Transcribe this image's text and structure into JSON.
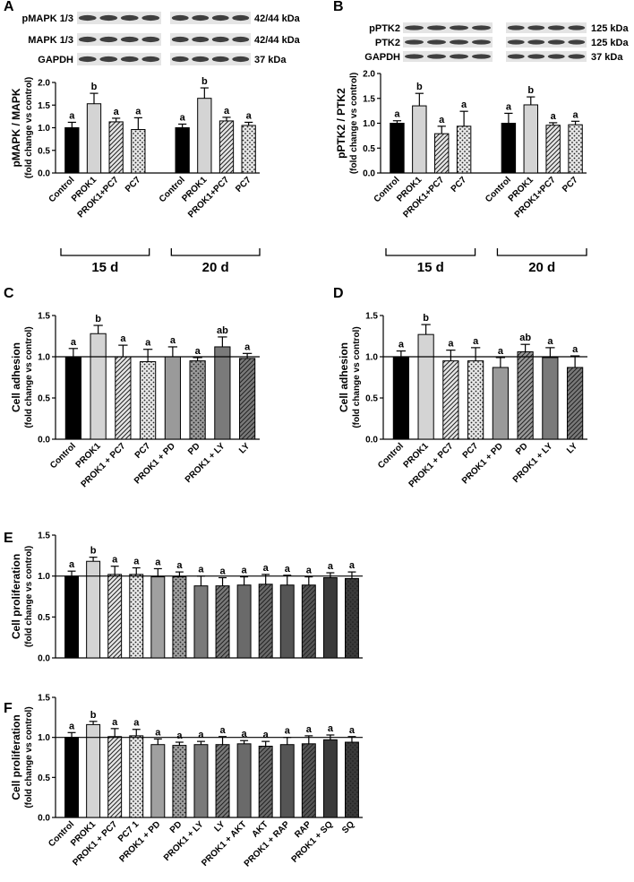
{
  "chart_data": [
    {
      "type": "bar",
      "panel": "A",
      "ylabel": [
        "pMAPK / MAPK",
        "(fold change vs control)"
      ],
      "blot": {
        "labels": [
          "pMAPK 1/3",
          "MAPK 1/3",
          "GAPDH"
        ],
        "sizes": [
          "42/44 kDa",
          "42/44 kDa",
          "37 kDa"
        ]
      },
      "groups": [
        "15 d",
        "20 d"
      ],
      "categories": [
        "Control",
        "PROK1",
        "PROK1+PC7",
        "PC7",
        "Control",
        "PROK1",
        "PROK1+PC7",
        "PC7"
      ],
      "values": [
        1.0,
        1.53,
        1.13,
        0.96,
        1.0,
        1.65,
        1.15,
        1.05
      ],
      "errors": [
        0.12,
        0.23,
        0.08,
        0.26,
        0.08,
        0.23,
        0.08,
        0.07
      ],
      "letters": [
        "a",
        "b",
        "a",
        "a",
        "a",
        "b",
        "a",
        "a"
      ],
      "colors": [
        "#000000",
        "#d4d4d4",
        "#e6e6e6",
        "#e6e6e6",
        "#000000",
        "#d4d4d4",
        "#e6e6e6",
        "#e6e6e6"
      ],
      "patterns": [
        "solid",
        "solid",
        "hatch",
        "dots",
        "solid",
        "solid",
        "hatch",
        "dots"
      ],
      "ylim": [
        0,
        2.0
      ],
      "yticks": [
        {
          "value": 0,
          "label": "0.0"
        },
        {
          "value": 0.5,
          "label": "0.5"
        },
        {
          "value": 1.0,
          "label": "1.0"
        },
        {
          "value": 1.5,
          "label": "1.5"
        },
        {
          "value": 2.0,
          "label": "2.0"
        }
      ]
    },
    {
      "type": "bar",
      "panel": "B",
      "ylabel": [
        "pPTK2 / PTK2",
        "(fold change vs control)"
      ],
      "blot": {
        "labels": [
          "pPTK2",
          "PTK2",
          "GAPDH"
        ],
        "sizes": [
          "125 kDa",
          "125 kDa",
          "37 kDa"
        ]
      },
      "groups": [
        "15 d",
        "20 d"
      ],
      "categories": [
        "Control",
        "PROK1",
        "PROK1+PC7",
        "PC7",
        "Control",
        "PROK1",
        "PROK1+PC7",
        "PC7"
      ],
      "values": [
        1.0,
        1.35,
        0.79,
        0.94,
        1.0,
        1.37,
        0.96,
        0.97
      ],
      "errors": [
        0.05,
        0.25,
        0.15,
        0.3,
        0.2,
        0.16,
        0.05,
        0.07
      ],
      "letters": [
        "a",
        "b",
        "a",
        "a",
        "a",
        "b",
        "a",
        "a"
      ],
      "colors": [
        "#000000",
        "#d4d4d4",
        "#e6e6e6",
        "#e6e6e6",
        "#000000",
        "#d4d4d4",
        "#e6e6e6",
        "#e6e6e6"
      ],
      "patterns": [
        "solid",
        "solid",
        "hatch",
        "dots",
        "solid",
        "solid",
        "hatch",
        "dots"
      ],
      "ylim": [
        0,
        2.0
      ],
      "yticks": [
        {
          "value": 0,
          "label": "0.0"
        },
        {
          "value": 0.5,
          "label": "0.5"
        },
        {
          "value": 1.0,
          "label": "1.0"
        },
        {
          "value": 1.5,
          "label": "1.5"
        },
        {
          "value": 2.0,
          "label": "2.0"
        }
      ]
    },
    {
      "type": "bar",
      "panel": "C",
      "ylabel": [
        "Cell adhesion",
        "(fold change vs control)"
      ],
      "categories": [
        "Control",
        "PROK1",
        "PROK1 + PC7",
        "PC7",
        "PROK1 + PD",
        "PD",
        "PROK1 + LY",
        "LY"
      ],
      "values": [
        1.0,
        1.28,
        1.0,
        0.94,
        1.0,
        0.95,
        1.12,
        0.98
      ],
      "errors": [
        0.1,
        0.1,
        0.14,
        0.15,
        0.12,
        0.04,
        0.12,
        0.06
      ],
      "letters": [
        "a",
        "b",
        "a",
        "a",
        "a",
        "a",
        "ab",
        "a"
      ],
      "colors": [
        "#000000",
        "#d4d4d4",
        "#e6e6e6",
        "#e6e6e6",
        "#9a9a9a",
        "#9a9a9a",
        "#7a7a7a",
        "#7a7a7a"
      ],
      "patterns": [
        "solid",
        "solid",
        "hatch",
        "dots",
        "solid",
        "dots",
        "solid",
        "hatch"
      ],
      "reference_line": 1.0,
      "ylim": [
        0,
        1.5
      ],
      "yticks": [
        {
          "value": 0,
          "label": "0.0"
        },
        {
          "value": 0.5,
          "label": "0.5"
        },
        {
          "value": 1.0,
          "label": "1.0"
        },
        {
          "value": 1.5,
          "label": "1.5"
        }
      ]
    },
    {
      "type": "bar",
      "panel": "D",
      "ylabel": [
        "Cell adhesion",
        "(fold change vs control)"
      ],
      "categories": [
        "Control",
        "PROK1",
        "PROK1 + PC7",
        "PC7",
        "PROK1 + PD",
        "PD",
        "PROK1 + LY",
        "LY"
      ],
      "values": [
        1.0,
        1.27,
        0.95,
        0.95,
        0.87,
        1.06,
        0.99,
        0.87
      ],
      "errors": [
        0.07,
        0.12,
        0.13,
        0.16,
        0.12,
        0.09,
        0.12,
        0.14
      ],
      "letters": [
        "a",
        "b",
        "a",
        "a",
        "a",
        "ab",
        "a",
        "a"
      ],
      "colors": [
        "#000000",
        "#d4d4d4",
        "#e6e6e6",
        "#e6e6e6",
        "#9a9a9a",
        "#9a9a9a",
        "#7a7a7a",
        "#7a7a7a"
      ],
      "patterns": [
        "solid",
        "solid",
        "hatch",
        "dots",
        "solid",
        "hatch",
        "solid",
        "hatch"
      ],
      "reference_line": 1.0,
      "ylim": [
        0,
        1.5
      ],
      "yticks": [
        {
          "value": 0,
          "label": "0.0"
        },
        {
          "value": 0.5,
          "label": "0.5"
        },
        {
          "value": 1.0,
          "label": "1.0"
        },
        {
          "value": 1.5,
          "label": "1.5"
        }
      ]
    },
    {
      "type": "bar",
      "panel": "E",
      "ylabel": [
        "Cell proliferation",
        "(fold change vs control)"
      ],
      "categories": [
        null,
        null,
        null,
        null,
        null,
        null,
        null,
        null,
        null,
        null,
        null,
        null,
        null,
        null
      ],
      "values": [
        1.0,
        1.18,
        1.02,
        1.02,
        0.99,
        0.99,
        0.88,
        0.88,
        0.89,
        0.9,
        0.89,
        0.89,
        0.98,
        0.97
      ],
      "errors": [
        0.06,
        0.05,
        0.1,
        0.08,
        0.1,
        0.06,
        0.12,
        0.1,
        0.1,
        0.12,
        0.12,
        0.1,
        0.06,
        0.08
      ],
      "letters": [
        "a",
        "b",
        "a",
        "a",
        "a",
        "a",
        "a",
        "a",
        "a",
        "a",
        "a",
        "a",
        "a",
        "a"
      ],
      "colors": [
        "#000000",
        "#d4d4d4",
        "#e6e6e6",
        "#e6e6e6",
        "#a0a0a0",
        "#a0a0a0",
        "#7a7a7a",
        "#7a7a7a",
        "#6a6a6a",
        "#6a6a6a",
        "#555555",
        "#555555",
        "#3a3a3a",
        "#3a3a3a"
      ],
      "patterns": [
        "solid",
        "solid",
        "hatch",
        "dots",
        "solid",
        "dots",
        "solid",
        "hatch",
        "solid",
        "hatch",
        "solid",
        "hatch",
        "solid",
        "dots"
      ],
      "reference_line": 1.0,
      "ylim": [
        0,
        1.5
      ],
      "yticks": [
        {
          "value": 0,
          "label": "0.0"
        },
        {
          "value": 0.5,
          "label": "0.5"
        },
        {
          "value": 1.0,
          "label": "1.0"
        },
        {
          "value": 1.5,
          "label": "1.5"
        }
      ]
    },
    {
      "type": "bar",
      "panel": "F",
      "ylabel": [
        "Cell proliferation",
        "(fold change vs control)"
      ],
      "categories": [
        "Control",
        "PROK1",
        "PROK1 + PC7",
        "PC7 1",
        "PROK1 + PD",
        "PD",
        "PROK1 + LY",
        "LY",
        "PROK1 + AKT",
        "AKT",
        "PROK1 + RAP",
        "RAP",
        "PROK1 + SQ",
        "SQ"
      ],
      "values": [
        1.0,
        1.16,
        1.01,
        1.02,
        0.91,
        0.9,
        0.91,
        0.91,
        0.92,
        0.89,
        0.91,
        0.92,
        0.97,
        0.94
      ],
      "errors": [
        0.06,
        0.04,
        0.1,
        0.08,
        0.07,
        0.04,
        0.04,
        0.1,
        0.04,
        0.06,
        0.09,
        0.1,
        0.06,
        0.07
      ],
      "letters": [
        "a",
        "b",
        "a",
        "a",
        "a",
        "a",
        "a",
        "a",
        "a",
        "a",
        "a",
        "a",
        "a",
        "a"
      ],
      "colors": [
        "#000000",
        "#d4d4d4",
        "#e6e6e6",
        "#e6e6e6",
        "#a0a0a0",
        "#a0a0a0",
        "#7a7a7a",
        "#7a7a7a",
        "#6a6a6a",
        "#6a6a6a",
        "#555555",
        "#555555",
        "#3a3a3a",
        "#3a3a3a"
      ],
      "patterns": [
        "solid",
        "solid",
        "hatch",
        "dots",
        "solid",
        "dots",
        "solid",
        "hatch",
        "solid",
        "hatch",
        "solid",
        "hatch",
        "solid",
        "dots"
      ],
      "reference_line": 1.0,
      "ylim": [
        0,
        1.5
      ],
      "yticks": [
        {
          "value": 0,
          "label": "0.0"
        },
        {
          "value": 0.5,
          "label": "0.5"
        },
        {
          "value": 1.0,
          "label": "1.0"
        },
        {
          "value": 1.5,
          "label": "1.5"
        }
      ]
    }
  ]
}
